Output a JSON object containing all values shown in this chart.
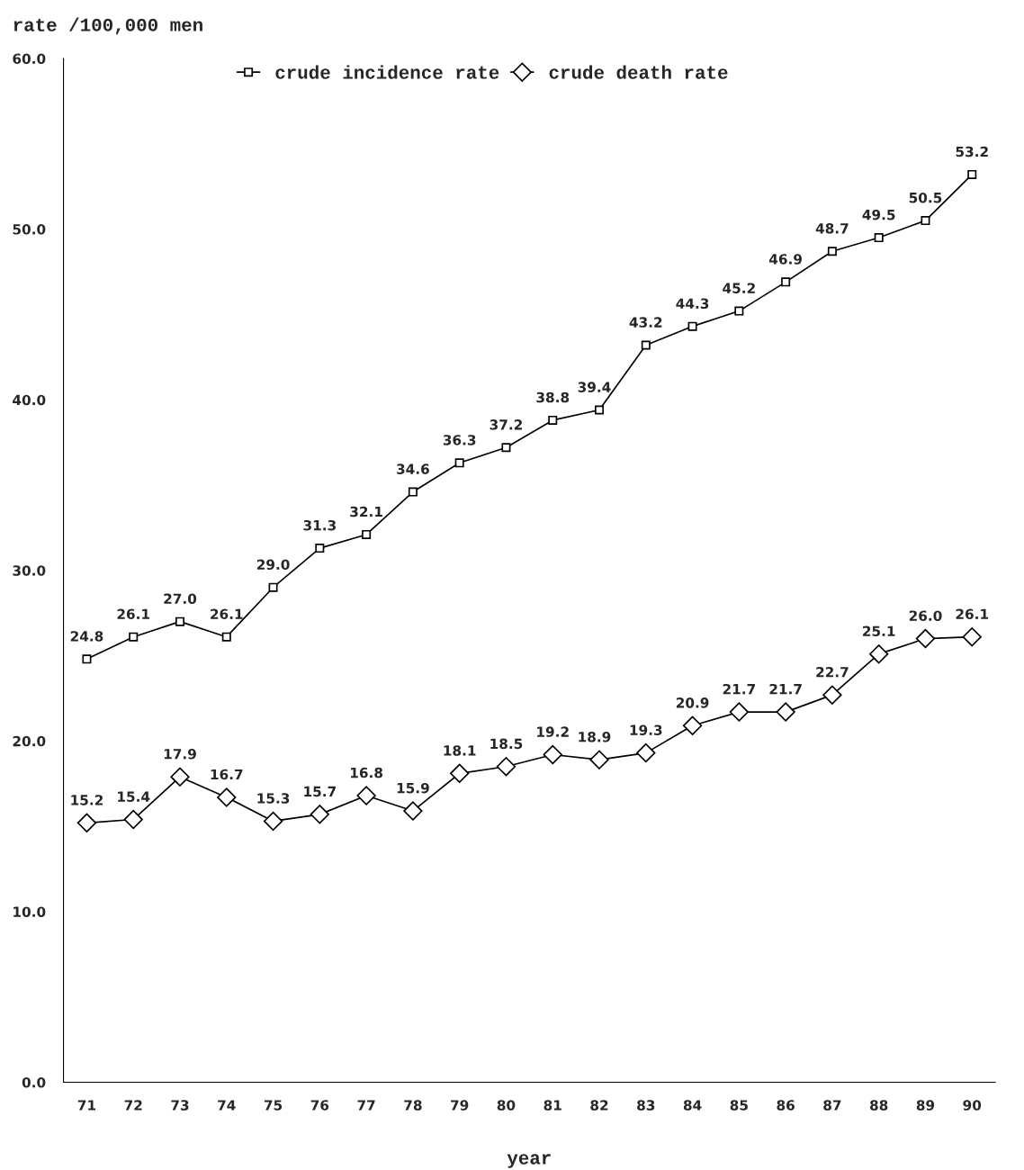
{
  "chart_data": {
    "type": "line",
    "ylabel": "rate /100,000 men",
    "xlabel": "year",
    "categories": [
      "71",
      "72",
      "73",
      "74",
      "75",
      "76",
      "77",
      "78",
      "79",
      "80",
      "81",
      "82",
      "83",
      "84",
      "85",
      "86",
      "87",
      "88",
      "89",
      "90"
    ],
    "series": [
      {
        "name": "crude incidence rate",
        "color": "#000000",
        "marker": "square",
        "values": [
          24.8,
          26.1,
          27.0,
          26.1,
          29.0,
          31.3,
          32.1,
          34.6,
          36.3,
          37.2,
          38.8,
          39.4,
          43.2,
          44.3,
          45.2,
          46.9,
          48.7,
          49.5,
          50.5,
          53.2
        ],
        "value_labels": [
          "24.8",
          "26.1",
          "27.0",
          "26.1",
          "29.0",
          "31.3",
          "32.1",
          "34.6",
          "36.3",
          "37.2",
          "38.8",
          "39.4",
          "43.2",
          "44.3",
          "45.2",
          "46.9",
          "48.7",
          "49.5",
          "50.5",
          "53.2"
        ]
      },
      {
        "name": "crude death rate",
        "color": "#000000",
        "marker": "diamond",
        "values": [
          15.2,
          15.4,
          17.9,
          16.7,
          15.3,
          15.7,
          16.8,
          15.9,
          18.1,
          18.5,
          19.2,
          18.9,
          19.3,
          20.9,
          21.7,
          21.7,
          22.7,
          25.1,
          26.0,
          26.1
        ],
        "value_labels": [
          "15.2",
          "15.4",
          "17.9",
          "16.7",
          "15.3",
          "15.7",
          "16.8",
          "15.9",
          "18.1",
          "18.5",
          "19.2",
          "18.9",
          "19.3",
          "20.9",
          "21.7",
          "21.7",
          "22.7",
          "25.1",
          "26.0",
          "26.1"
        ]
      }
    ],
    "ylim": [
      0,
      60
    ],
    "yticks": [
      {
        "value": 0,
        "label": "0.0"
      },
      {
        "value": 10,
        "label": "10.0"
      },
      {
        "value": 20,
        "label": "20.0"
      },
      {
        "value": 30,
        "label": "30.0"
      },
      {
        "value": 40,
        "label": "40.0"
      },
      {
        "value": 50,
        "label": "50.0"
      },
      {
        "value": 60,
        "label": "60.0"
      }
    ],
    "grid": false,
    "legend": "top",
    "line_style": "solid"
  }
}
